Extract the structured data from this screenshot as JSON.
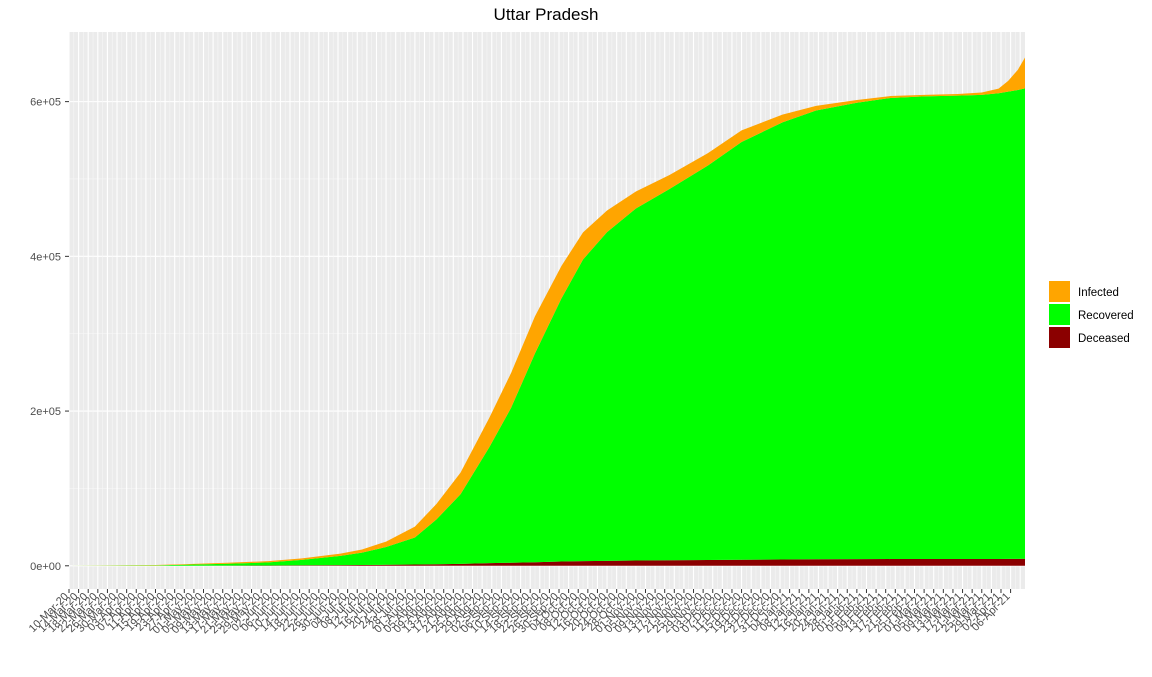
{
  "chart_data": {
    "type": "area",
    "stacked": true,
    "title": "Uttar Pradesh",
    "xlabel": "",
    "ylabel": "",
    "ylim": [
      -30000,
      690000
    ],
    "y_ticks": [
      0,
      200000,
      400000,
      600000
    ],
    "y_tick_labels": [
      "0e+00",
      "2e+05",
      "4e+05",
      "6e+05"
    ],
    "x_start": "2020-03-10",
    "x_end": "2021-04-12",
    "x_tick_labels": [
      "10-Mar-20",
      "14-Mar-20",
      "18-Mar-20",
      "22-Mar-20",
      "26-Mar-20",
      "30-Mar-20",
      "03-Apr-20",
      "07-Apr-20",
      "11-Apr-20",
      "15-Apr-20",
      "19-Apr-20",
      "23-Apr-20",
      "27-Apr-20",
      "01-May-20",
      "05-May-20",
      "09-May-20",
      "13-May-20",
      "17-May-20",
      "21-May-20",
      "25-May-20",
      "29-May-20",
      "02-Jun-20",
      "06-Jun-20",
      "10-Jun-20",
      "14-Jun-20",
      "18-Jun-20",
      "22-Jun-20",
      "26-Jun-20",
      "30-Jun-20",
      "04-Jul-20",
      "08-Jul-20",
      "12-Jul-20",
      "16-Jul-20",
      "20-Jul-20",
      "24-Jul-20",
      "28-Jul-20",
      "01-Aug-20",
      "05-Aug-20",
      "09-Aug-20",
      "13-Aug-20",
      "17-Aug-20",
      "21-Aug-20",
      "25-Aug-20",
      "29-Aug-20",
      "02-Sep-20",
      "06-Sep-20",
      "10-Sep-20",
      "14-Sep-20",
      "18-Sep-20",
      "22-Sep-20",
      "26-Sep-20",
      "30-Sep-20",
      "04-Oct-20",
      "08-Oct-20",
      "12-Oct-20",
      "16-Oct-20",
      "20-Oct-20",
      "24-Oct-20",
      "28-Oct-20",
      "01-Nov-20",
      "05-Nov-20",
      "09-Nov-20",
      "13-Nov-20",
      "17-Nov-20",
      "21-Nov-20",
      "25-Nov-20",
      "29-Nov-20",
      "03-Dec-20",
      "07-Dec-20",
      "11-Dec-20",
      "15-Dec-20",
      "19-Dec-20",
      "23-Dec-20",
      "27-Dec-20",
      "31-Dec-20",
      "04-Jan-21",
      "08-Jan-21",
      "12-Jan-21",
      "16-Jan-21",
      "20-Jan-21",
      "24-Jan-21",
      "28-Jan-21",
      "01-Feb-21",
      "05-Feb-21",
      "09-Feb-21",
      "13-Feb-21",
      "17-Feb-21",
      "21-Feb-21",
      "25-Feb-21",
      "01-Mar-21",
      "05-Mar-21",
      "09-Mar-21",
      "13-Mar-21",
      "17-Mar-21",
      "21-Mar-21",
      "25-Mar-21",
      "29-Mar-21",
      "02-Apr-21",
      "06-Apr-21"
    ],
    "grid": true,
    "legend_position": "right",
    "legend": [
      "Infected",
      "Recovered",
      "Deceased"
    ],
    "colors": {
      "Infected": "#FFA500",
      "Recovered": "#00FF00",
      "Deceased": "#8B0000"
    },
    "x": [
      "2020-03-10",
      "2020-04-15",
      "2020-05-01",
      "2020-05-15",
      "2020-06-01",
      "2020-06-15",
      "2020-07-01",
      "2020-07-10",
      "2020-07-20",
      "2020-08-01",
      "2020-08-10",
      "2020-08-20",
      "2020-09-01",
      "2020-09-10",
      "2020-09-20",
      "2020-10-01",
      "2020-10-10",
      "2020-10-20",
      "2020-11-01",
      "2020-11-15",
      "2020-12-01",
      "2020-12-15",
      "2021-01-01",
      "2021-01-15",
      "2021-02-01",
      "2021-02-15",
      "2021-03-01",
      "2021-03-15",
      "2021-03-25",
      "2021-04-01",
      "2021-04-05",
      "2021-04-09",
      "2021-04-12"
    ],
    "series": [
      {
        "name": "Deceased",
        "values": [
          0,
          0,
          100,
          200,
          400,
          650,
          800,
          1000,
          1300,
          1600,
          2000,
          2500,
          3400,
          3900,
          4500,
          5500,
          6000,
          6300,
          6800,
          7100,
          7500,
          7800,
          8200,
          8500,
          8600,
          8700,
          8750,
          8780,
          8800,
          8850,
          8900,
          9000,
          9100
        ]
      },
      {
        "name": "Recovered",
        "values": [
          0,
          600,
          1500,
          2500,
          4000,
          7000,
          12000,
          16000,
          23000,
          35000,
          58000,
          90000,
          150000,
          200000,
          270000,
          340000,
          390000,
          425000,
          455000,
          480000,
          510000,
          540000,
          565000,
          580000,
          590000,
          596000,
          598000,
          599000,
          600000,
          602000,
          604000,
          606000,
          608000
        ]
      },
      {
        "name": "Infected",
        "values": [
          0,
          500,
          900,
          1300,
          1600,
          2000,
          3000,
          4000,
          7000,
          14000,
          20000,
          28000,
          38000,
          45000,
          48000,
          42000,
          35000,
          28000,
          22000,
          18000,
          16000,
          15000,
          10000,
          6000,
          3500,
          2500,
          2000,
          2000,
          3000,
          6000,
          14000,
          26000,
          40000
        ]
      }
    ]
  }
}
